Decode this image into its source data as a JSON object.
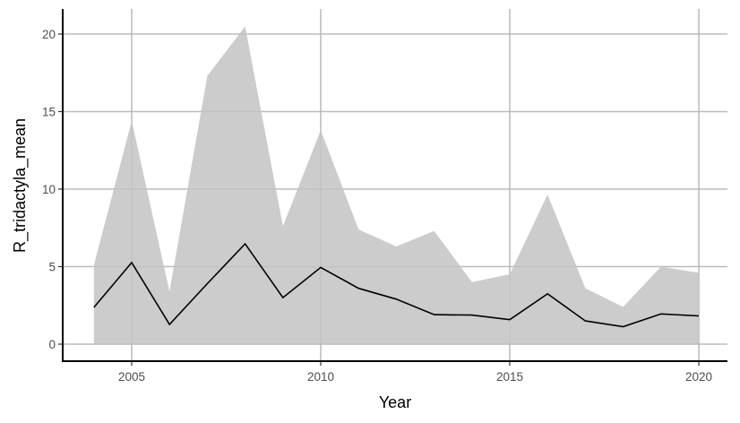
{
  "chart_data": {
    "type": "area",
    "title": "",
    "xlabel": "Year",
    "ylabel": "R_tridactyla_mean",
    "xlim": [
      2003.6,
      2020.75
    ],
    "ylim": [
      -1.05,
      21.5
    ],
    "x_ticks": [
      2005,
      2010,
      2015,
      2020
    ],
    "y_ticks": [
      0,
      5,
      10,
      15,
      20
    ],
    "grid": true,
    "legend": null,
    "x": [
      2004,
      2005,
      2006,
      2007,
      2008,
      2009,
      2010,
      2011,
      2012,
      2013,
      2014,
      2015,
      2016,
      2017,
      2018,
      2019,
      2020
    ],
    "series": [
      {
        "name": "R_tridactyla_mean",
        "kind": "line",
        "color": "#000000",
        "values": [
          2.37,
          5.26,
          1.27,
          3.9,
          6.47,
          3.0,
          4.95,
          3.6,
          2.9,
          1.9,
          1.87,
          1.58,
          3.24,
          1.5,
          1.13,
          1.95,
          1.82
        ]
      },
      {
        "name": "ribbon_upper",
        "kind": "ribbon-upper",
        "color": "#cccccc",
        "values": [
          5.1,
          14.4,
          3.4,
          17.3,
          20.5,
          7.6,
          13.8,
          7.4,
          6.3,
          7.3,
          4.0,
          4.5,
          9.65,
          3.6,
          2.4,
          5.0,
          4.6
        ]
      },
      {
        "name": "ribbon_lower",
        "kind": "ribbon-lower",
        "color": "#cccccc",
        "values": [
          0,
          0,
          0,
          0,
          0,
          0,
          0,
          0,
          0,
          0,
          0,
          0,
          0,
          0,
          0,
          0,
          0
        ]
      }
    ]
  },
  "style": {
    "ribbon_fill": "#cccccc",
    "line_color": "#000000",
    "grid_color": "#c4c4c4",
    "axis_color": "#000000",
    "tick_text_color": "#4d4d4d"
  }
}
